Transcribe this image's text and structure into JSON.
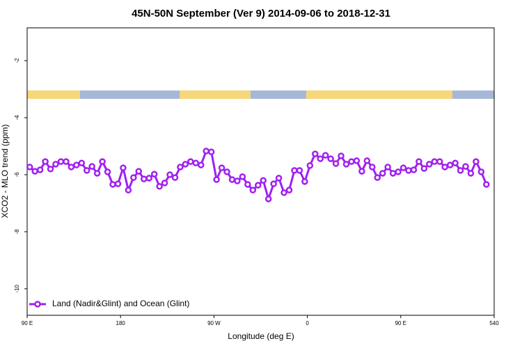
{
  "chart_data": {
    "type": "line",
    "title": "45N-50N September (Ver 9)   2014-09-06 to 2018-12-31",
    "x_label": "Longitude (deg E)",
    "y_label": "XCO2 - MLO trend (ppm)",
    "xlim": [
      90,
      540
    ],
    "xticks": [
      {
        "value": 90,
        "label": "90 E"
      },
      180,
      {
        "value": 270,
        "label": "90 W"
      },
      {
        "value": 360,
        "label": "0"
      },
      {
        "value": 450,
        "label": "90 E"
      },
      540
    ],
    "ylim": [
      -10.93,
      -0.85
    ],
    "yticks": [
      -10,
      -8,
      -6,
      -4,
      -2
    ],
    "legend": "bottom-left",
    "x": [
      92.5,
      97.5,
      102.5,
      107.5,
      112.5,
      117.5,
      122.5,
      127.5,
      132.5,
      137.5,
      142.5,
      147.5,
      152.5,
      157.5,
      162.5,
      167.5,
      172.5,
      177.5,
      182.5,
      187.5,
      192.5,
      197.5,
      202.5,
      207.5,
      212.5,
      217.5,
      222.5,
      227.5,
      232.5,
      237.5,
      242.5,
      247.5,
      252.5,
      257.5,
      262.5,
      267.5,
      272.5,
      277.5,
      282.5,
      287.5,
      292.5,
      297.5,
      302.5,
      307.5,
      312.5,
      317.5,
      322.5,
      327.5,
      332.5,
      337.5,
      342.5,
      347.5,
      352.5,
      357.5,
      362.5,
      367.5,
      372.5,
      377.5,
      382.5,
      387.5,
      392.5,
      397.5,
      402.5,
      407.5,
      412.5,
      417.5,
      422.5,
      427.5,
      432.5,
      437.5,
      442.5,
      447.5,
      452.5,
      457.5,
      462.5,
      467.5,
      472.5,
      477.5,
      482.5,
      487.5,
      492.5,
      497.5,
      502.5,
      507.5,
      512.5,
      517.5,
      522.5,
      527.5,
      532.5
    ],
    "series": [
      {
        "name": "Land (Nadir&Glint) and Ocean (Glint)",
        "color": "#a020f0",
        "values": [
          -5.73,
          -5.88,
          -5.83,
          -5.54,
          -5.8,
          -5.63,
          -5.54,
          -5.54,
          -5.73,
          -5.66,
          -5.59,
          -5.85,
          -5.71,
          -5.95,
          -5.54,
          -5.9,
          -6.34,
          -6.32,
          -5.76,
          -6.54,
          -6.1,
          -5.88,
          -6.15,
          -6.12,
          -5.98,
          -6.41,
          -6.29,
          -6.0,
          -6.1,
          -5.73,
          -5.63,
          -5.54,
          -5.59,
          -5.66,
          -5.17,
          -5.2,
          -6.17,
          -5.76,
          -5.9,
          -6.17,
          -6.22,
          -6.07,
          -6.34,
          -6.54,
          -6.37,
          -6.2,
          -6.85,
          -6.32,
          -6.12,
          -6.63,
          -6.54,
          -5.85,
          -5.85,
          -6.24,
          -5.68,
          -5.27,
          -5.44,
          -5.32,
          -5.44,
          -5.61,
          -5.34,
          -5.63,
          -5.54,
          -5.51,
          -5.88,
          -5.51,
          -5.73,
          -6.1,
          -5.95,
          -5.73,
          -5.95,
          -5.9,
          -5.76,
          -5.85,
          -5.83,
          -5.54,
          -5.78,
          -5.63,
          -5.54,
          -5.54,
          -5.73,
          -5.66,
          -5.59,
          -5.85,
          -5.71,
          -5.95,
          -5.54,
          -5.9,
          -6.34
        ]
      }
    ]
  }
}
